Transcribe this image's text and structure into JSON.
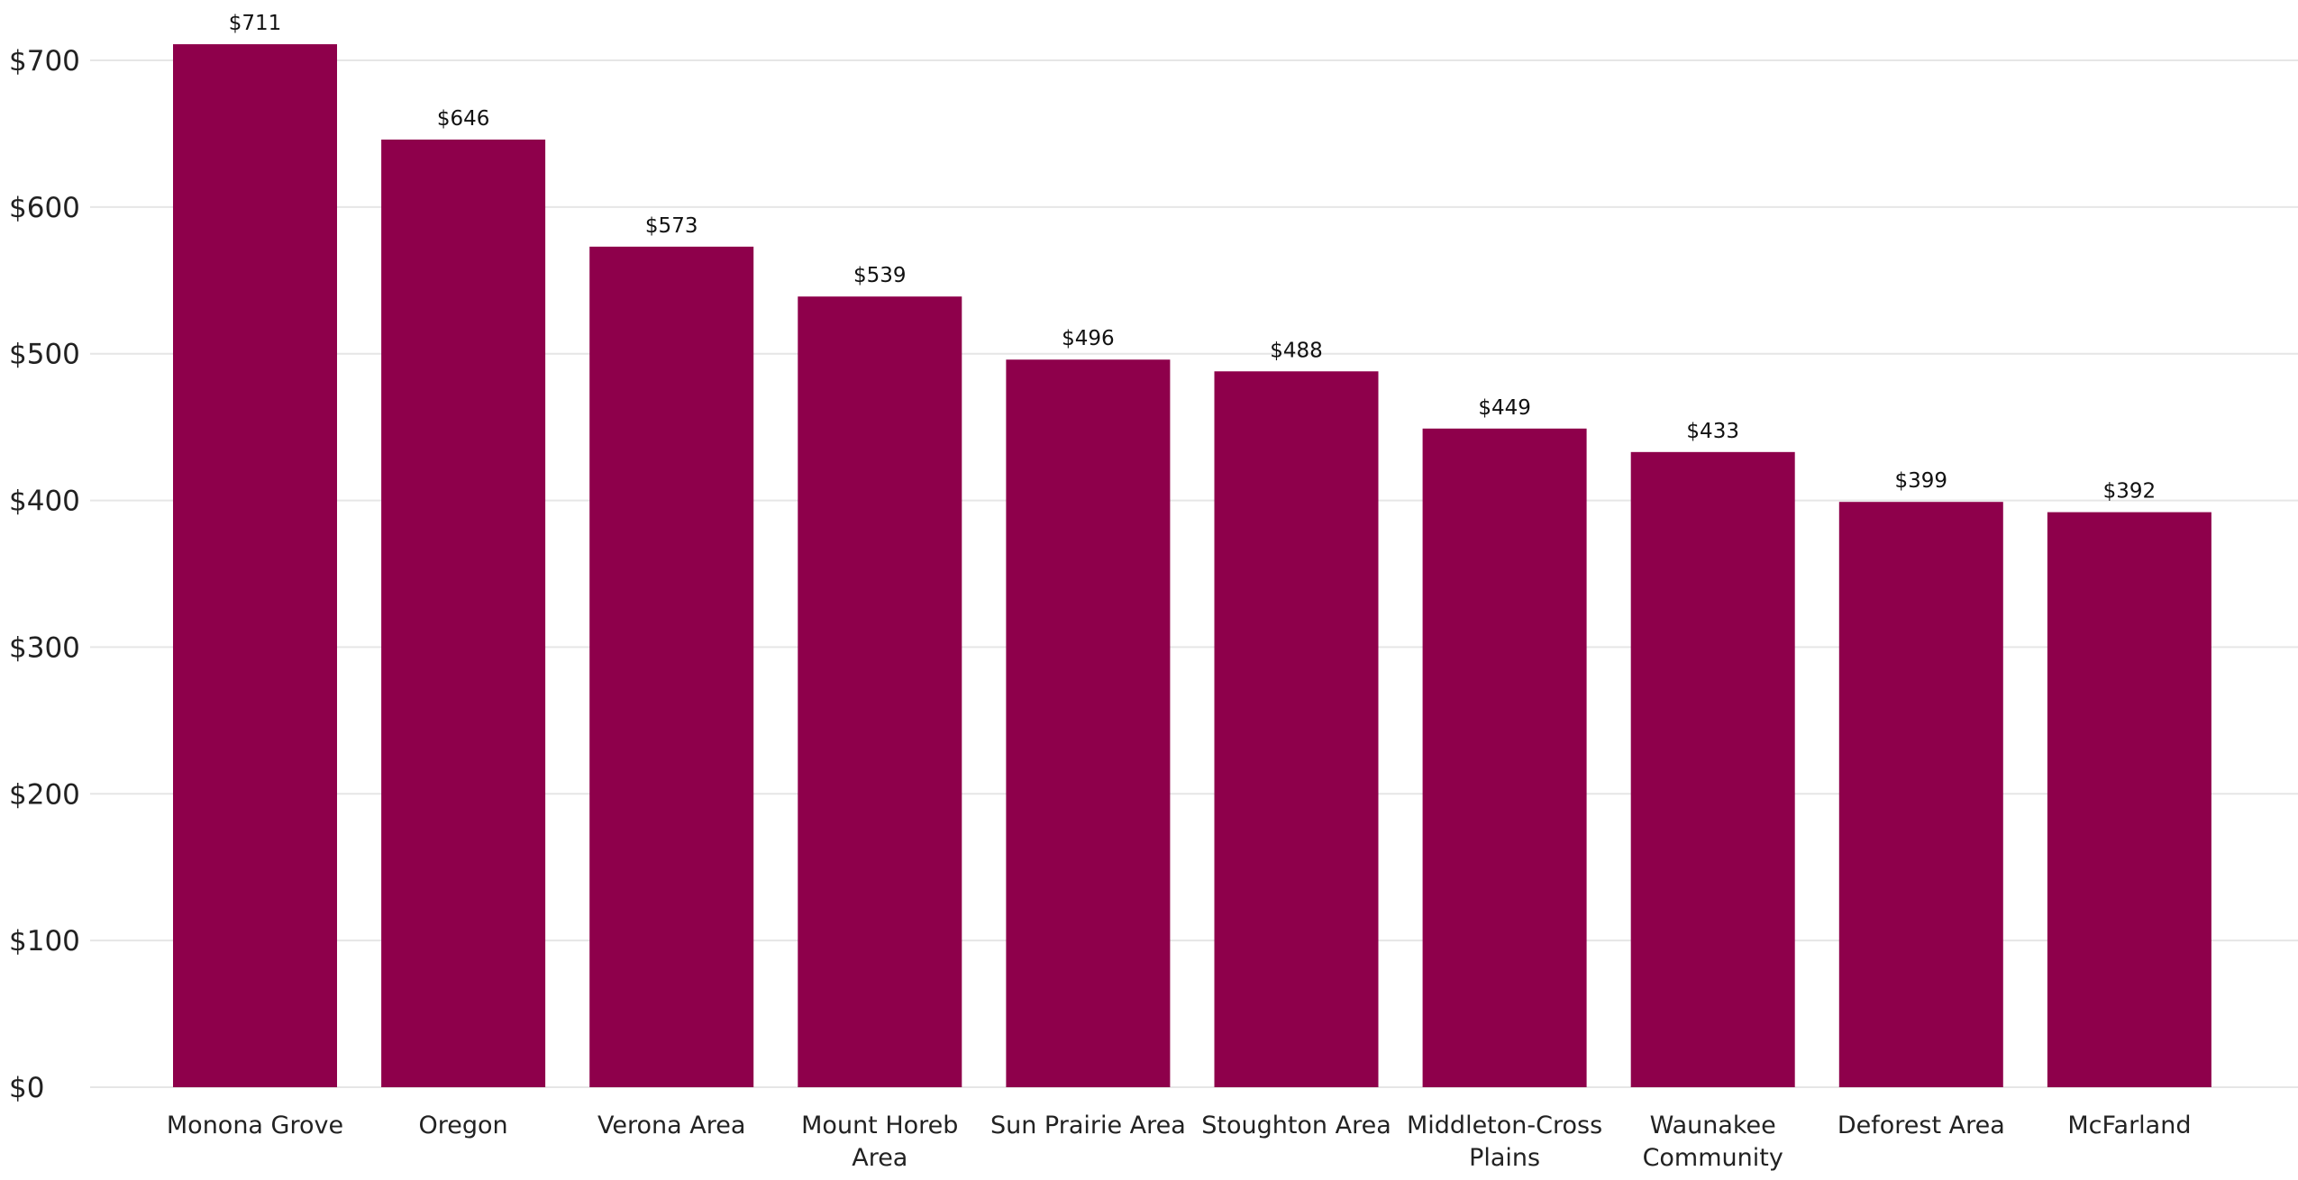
{
  "chart_data": {
    "type": "bar",
    "title": "",
    "xlabel": "",
    "ylabel": "",
    "categories": [
      "Monona Grove",
      "Oregon",
      "Verona Area",
      "Mount Horeb Area",
      "Sun Prairie Area",
      "Stoughton Area",
      "Middleton-Cross Plains",
      "Waunakee Community",
      "Deforest Area",
      "McFarland"
    ],
    "category_label_lines": [
      [
        "Monona Grove"
      ],
      [
        "Oregon"
      ],
      [
        "Verona Area"
      ],
      [
        "Mount Horeb",
        "Area"
      ],
      [
        "Sun Prairie Area"
      ],
      [
        "Stoughton Area"
      ],
      [
        "Middleton-Cross",
        "Plains"
      ],
      [
        "Waunakee",
        "Community"
      ],
      [
        "Deforest Area"
      ],
      [
        "McFarland"
      ]
    ],
    "values": [
      711,
      646,
      573,
      539,
      496,
      488,
      449,
      433,
      399,
      392
    ],
    "data_labels": [
      "$711",
      "$646",
      "$573",
      "$539",
      "$496",
      "$488",
      "$449",
      "$433",
      "$399",
      "$392"
    ],
    "ylim": [
      0,
      700
    ],
    "y_ticks": [
      0,
      100,
      200,
      300,
      400,
      500,
      600,
      700
    ],
    "y_tick_labels": [
      "$0",
      "$100",
      "$200",
      "$300",
      "$400",
      "$500",
      "$600",
      "$700"
    ],
    "grid": true,
    "legend": "none",
    "bar_color": "#8e004b",
    "grid_color": "#e6e6e6"
  }
}
